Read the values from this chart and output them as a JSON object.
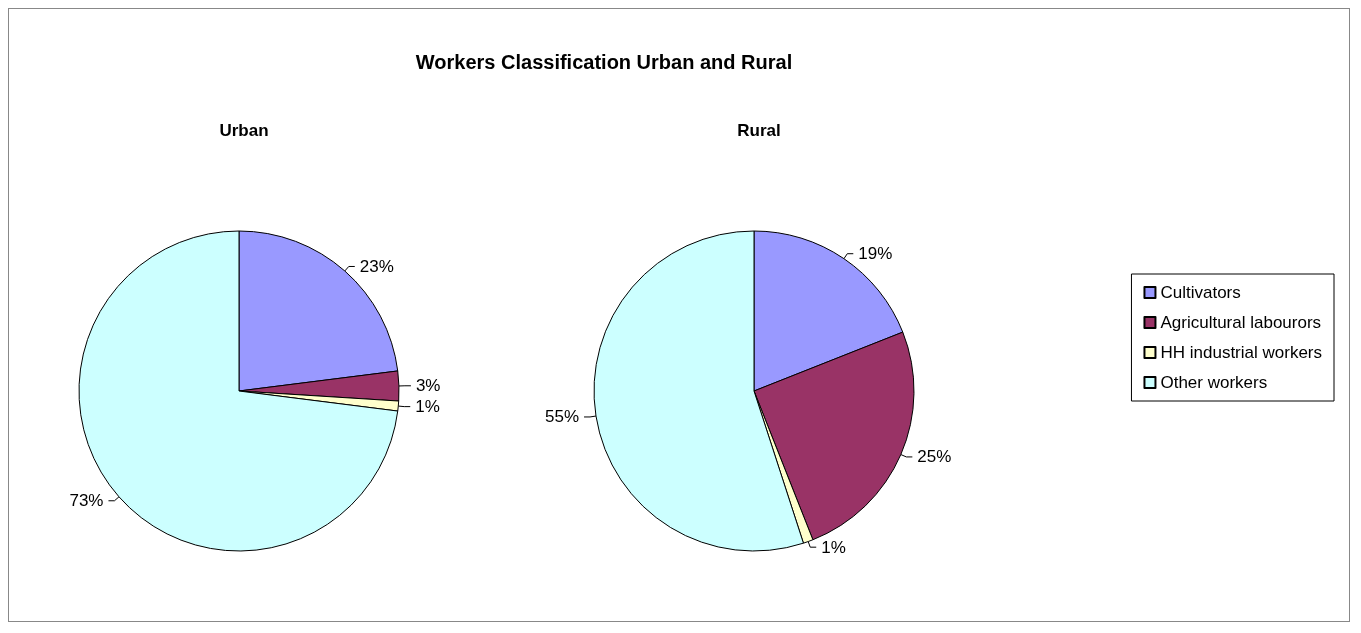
{
  "chart_data": [
    {
      "type": "pie",
      "title": "Urban",
      "categories": [
        null,
        null,
        null,
        null
      ],
      "values": [
        23,
        3,
        1,
        73
      ],
      "value_labels": [
        "23%",
        "3%",
        "1%",
        "73%"
      ],
      "colors": [
        "#9999ff",
        "#993366",
        "#ffffcc",
        "#ccffff"
      ],
      "legend": false
    },
    {
      "type": "pie",
      "title": "Workers Classification Urban and Rural",
      "subtitle": "Rural",
      "categories": [
        "Cultivators",
        "Agricultural labourors",
        "HH industrial workers",
        "Other workers"
      ],
      "values": [
        19,
        25,
        1,
        55
      ],
      "value_labels": [
        "19%",
        "25%",
        "1%",
        "55%"
      ],
      "colors": [
        "#9999ff",
        "#993366",
        "#ffffcc",
        "#ccffff"
      ],
      "legend": "right"
    }
  ]
}
